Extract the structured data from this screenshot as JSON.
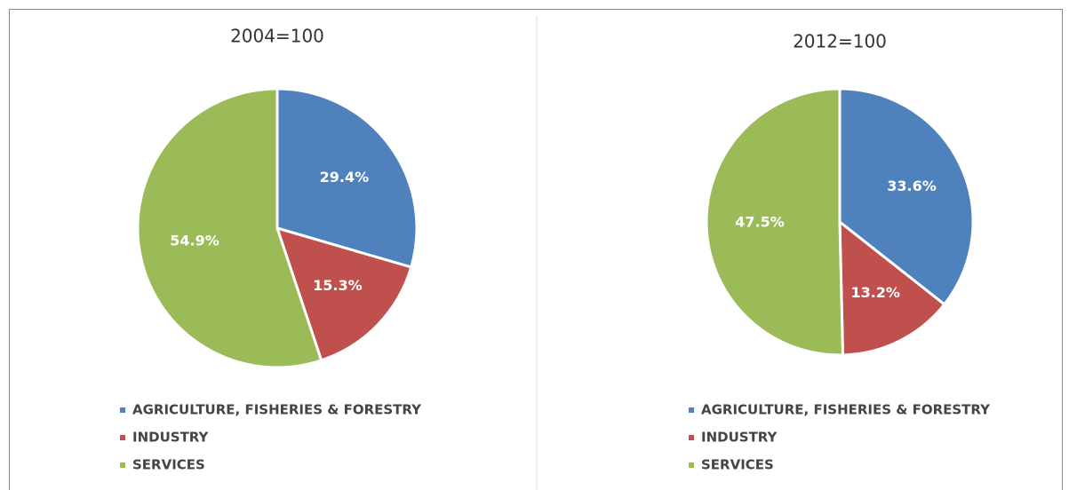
{
  "chart_data": [
    {
      "type": "pie",
      "title": "2004=100",
      "categories": [
        "AGRICULTURE, FISHERIES & FORESTRY",
        "INDUSTRY",
        "SERVICES"
      ],
      "values": [
        29.4,
        15.3,
        54.9
      ],
      "value_labels": [
        "29.4%",
        "15.3%",
        "54.9%"
      ],
      "colors": [
        "#4f81bd",
        "#c0504d",
        "#9bbb59"
      ],
      "legend": "bottom"
    },
    {
      "type": "pie",
      "title": "2012=100",
      "categories": [
        "AGRICULTURE, FISHERIES & FORESTRY",
        "INDUSTRY",
        "SERVICES"
      ],
      "values": [
        33.6,
        13.2,
        47.5
      ],
      "value_labels": [
        "33.6%",
        "13.2%",
        "47.5%"
      ],
      "colors": [
        "#4f81bd",
        "#c0504d",
        "#9bbb59"
      ],
      "legend": "bottom"
    }
  ]
}
